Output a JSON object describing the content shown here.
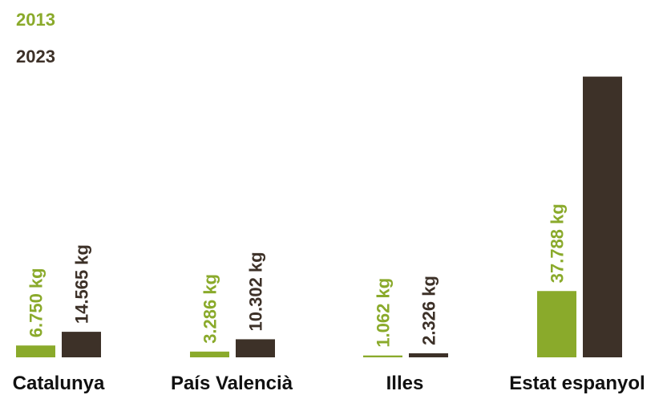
{
  "chart_data": {
    "type": "bar",
    "categories": [
      "Catalunya",
      "País Valencià",
      "Illes",
      "Estat espanyol"
    ],
    "series": [
      {
        "name": "2013",
        "values": [
          6750,
          3286,
          1062,
          37788
        ],
        "labels": [
          "6.750 kg",
          "3.286 kg",
          "1.062 kg",
          "37.788 kg"
        ]
      },
      {
        "name": "2023",
        "values": [
          14565,
          10302,
          2326,
          160000
        ],
        "labels": [
          "14.565 kg",
          "10.302 kg",
          "2.326 kg",
          ""
        ]
      }
    ],
    "ylim": [
      0,
      160000
    ],
    "legend": "top-left",
    "grid": false
  },
  "colors": {
    "s2013": "#8aaa2b",
    "s2023": "#3d3128"
  }
}
